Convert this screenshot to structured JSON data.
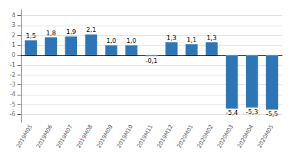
{
  "chart_data": {
    "type": "bar",
    "categories": [
      "2019M05",
      "2019M06",
      "2019M07",
      "2019M08",
      "2019M09",
      "2019M10",
      "2019M11",
      "2019M12",
      "2020M01",
      "2020M02",
      "2020M03",
      "2020M04",
      "2020M05"
    ],
    "values": [
      1.5,
      1.8,
      1.9,
      2.1,
      1.0,
      1.0,
      -0.1,
      1.3,
      1.1,
      1.3,
      -5.4,
      -5.3,
      -5.5
    ],
    "value_labels": [
      "1,5",
      "1,8",
      "1,9",
      "2,1",
      "1,0",
      "1,0",
      "-0,1",
      "1,3",
      "1,1",
      "1,3",
      "-5,4",
      "-5,3",
      "-5,5"
    ],
    "color": "#2e75b6",
    "ylim": [
      -6.8,
      4.6
    ],
    "yticks": [
      -6,
      -5,
      -4,
      -3,
      -2,
      -1,
      0,
      1,
      2,
      3,
      4
    ],
    "grid": true,
    "data_labels": true
  }
}
